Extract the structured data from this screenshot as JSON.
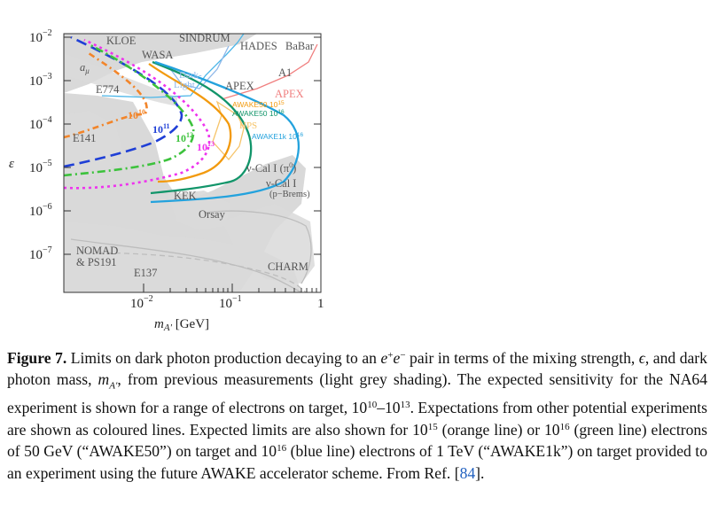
{
  "figure": {
    "axes": {
      "ylabel": "ε",
      "xlabel_main": "m",
      "xlabel_sub": "A′",
      "xlabel_unit": " [GeV]",
      "x_ticks": [
        {
          "base": "10",
          "exp": "−2"
        },
        {
          "base": "10",
          "exp": "−1"
        },
        {
          "base": "1",
          "exp": ""
        }
      ],
      "y_ticks": [
        {
          "base": "10",
          "exp": "−2"
        },
        {
          "base": "10",
          "exp": "−3"
        },
        {
          "base": "10",
          "exp": "−4"
        },
        {
          "base": "10",
          "exp": "−5"
        },
        {
          "base": "10",
          "exp": "−6"
        },
        {
          "base": "10",
          "exp": "−7"
        }
      ],
      "x_scale": "log",
      "y_scale": "log",
      "xlim": [
        0.0013,
        1.0
      ],
      "ylim": [
        1e-08,
        0.012
      ]
    },
    "regions": {
      "kloe": "KLOE",
      "sindrum": "SINDRUM",
      "hades": "HADES",
      "babar": "BaBar",
      "wasa": "WASA",
      "a_mu": "a",
      "a_mu_sub": "μ",
      "a1": "A1",
      "e774": "E774",
      "apex": "APEX",
      "apex_future": "APEX",
      "e141": "E141",
      "kek": "KEK",
      "orsay": "Orsay",
      "nomad": "NOMAD",
      "ps191": "& PS191",
      "e137": "E137",
      "charm": "CHARM",
      "ucal1": "ν-Cal I",
      "ucal1_pbrems": "(p−Brems)",
      "ucal1_pi0": "ν-Cal I (π",
      "ucal1_pi0_sup": "0",
      "ucal1_pi0_close": ")"
    },
    "curve_labels": {
      "dark_light_1": "Dark-",
      "dark_light_2": "Light",
      "hps": "HPS",
      "awake50_1e15": "AWAKE50 10",
      "awake50_1e15_exp": "15",
      "awake50_1e16": "AWAKE50 10",
      "awake50_1e16_exp": "16",
      "awake1k_1e16": "AWAKE1k 10",
      "awake1k_1e16_exp": "16",
      "na64_1e10_base": "10",
      "na64_1e10_exp": "10",
      "na64_1e11_base": "10",
      "na64_1e11_exp": "11",
      "na64_1e12_base": "10",
      "na64_1e12_exp": "12",
      "na64_1e13_base": "10",
      "na64_1e13_exp": "13"
    },
    "colors": {
      "excluded": "#d9d9d9",
      "awake50_1e15": "#f29a0e",
      "awake50_1e16": "#12956a",
      "awake1k_1e16": "#23a2dd",
      "na64_1e10": "#f2852a",
      "na64_1e11": "#1f3fd6",
      "na64_1e12": "#3cc23c",
      "na64_1e13": "#ee33ee",
      "dark_light": "#8fb8e8",
      "hps": "#f6c46a",
      "apex_future": "#f08080",
      "hades_babar_line": "#4bb6e8",
      "charm_curve": "#bdbdbd"
    }
  },
  "caption": {
    "label": "Figure 7.",
    "text_1": " Limits on dark photon production decaying to an ",
    "pair_e1": "e",
    "pair_sup1": "+",
    "pair_e2": "e",
    "pair_sup2": "−",
    "text_2": " pair in terms of the mixing strength, ",
    "epsilon": "ϵ",
    "text_3": ", and dark photon mass, ",
    "mass_m": "m",
    "mass_sub": "A′",
    "text_4": ", from previous measurements (light grey shading). The expected sensitivity for the NA64 experiment is shown for a range of electrons on target, 10",
    "exp_10": "10",
    "text_5": "–10",
    "exp_13": "13",
    "text_6": ". Expectations from other potential experiments are shown as coloured lines. Expected limits are also shown for 10",
    "exp_15": "15",
    "text_7": " (orange line) or 10",
    "exp_16a": "16",
    "text_8": " (green line) electrons of 50 GeV (“AWAKE50”) on target and 10",
    "exp_16b": "16",
    "text_9": " (blue line) electrons of 1 TeV (“AWAKE1k”) on target provided to an experiment using the future AWAKE accelerator scheme. From Ref. [",
    "ref": "84",
    "text_10": "]."
  }
}
